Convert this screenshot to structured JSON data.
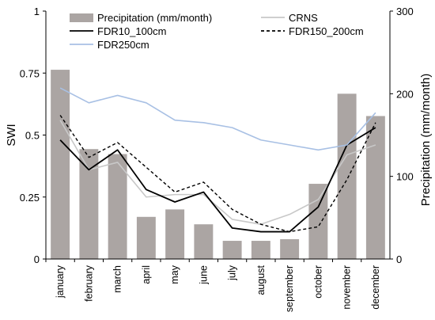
{
  "chart_data": {
    "type": "bar+line",
    "categories": [
      "january",
      "february",
      "march",
      "april",
      "may",
      "june",
      "july",
      "august",
      "september",
      "october",
      "november",
      "december"
    ],
    "ylabel_left": "SWI",
    "ylabel_right": "Precipitation (mm/month)",
    "ylim_left": [
      0,
      1
    ],
    "ylim_right": [
      0,
      300
    ],
    "yticks_left": [
      "0",
      "0.25",
      "0.5",
      "0.75",
      "1"
    ],
    "yticks_right": [
      "0",
      "100",
      "200",
      "300"
    ],
    "bars": {
      "name": "Precipitation (mm/month)",
      "axis": "right",
      "color": "#aba5a3",
      "values": [
        229,
        133,
        127,
        51,
        60,
        42,
        22,
        22,
        24,
        91,
        200,
        173
      ]
    },
    "series": [
      {
        "name": "CRNS",
        "axis": "left",
        "color": "#c8c8c8",
        "dash": "",
        "width": 1.6,
        "values": [
          0.56,
          0.36,
          0.39,
          0.25,
          0.26,
          0.26,
          0.16,
          0.14,
          0.18,
          0.24,
          0.42,
          0.46
        ]
      },
      {
        "name": "FDR10_100cm",
        "axis": "left",
        "color": "#000000",
        "dash": "",
        "width": 1.8,
        "values": [
          0.48,
          0.36,
          0.44,
          0.28,
          0.23,
          0.27,
          0.125,
          0.11,
          0.11,
          0.21,
          0.46,
          0.53
        ]
      },
      {
        "name": "FDR150_200cm",
        "axis": "left",
        "color": "#000000",
        "dash": "4 3",
        "width": 1.4,
        "values": [
          0.58,
          0.41,
          0.47,
          0.37,
          0.27,
          0.31,
          0.2,
          0.14,
          0.11,
          0.13,
          0.32,
          0.55
        ]
      },
      {
        "name": "FDR250cm",
        "axis": "left",
        "color": "#a8c0e4",
        "dash": "",
        "width": 1.6,
        "values": [
          0.69,
          0.63,
          0.66,
          0.63,
          0.56,
          0.55,
          0.53,
          0.48,
          0.46,
          0.44,
          0.46,
          0.59
        ]
      }
    ],
    "legend": [
      {
        "name": "Precipitation (mm/month)",
        "kind": "bar",
        "color": "#aba5a3"
      },
      {
        "name": "CRNS",
        "kind": "line",
        "color": "#c8c8c8",
        "dash": ""
      },
      {
        "name": "FDR10_100cm",
        "kind": "line",
        "color": "#000000",
        "dash": ""
      },
      {
        "name": "FDR150_200cm",
        "kind": "line",
        "color": "#000000",
        "dash": "4 3"
      },
      {
        "name": "FDR250cm",
        "kind": "line",
        "color": "#a8c0e4",
        "dash": ""
      }
    ],
    "legend_placement": "top",
    "grid": false
  }
}
